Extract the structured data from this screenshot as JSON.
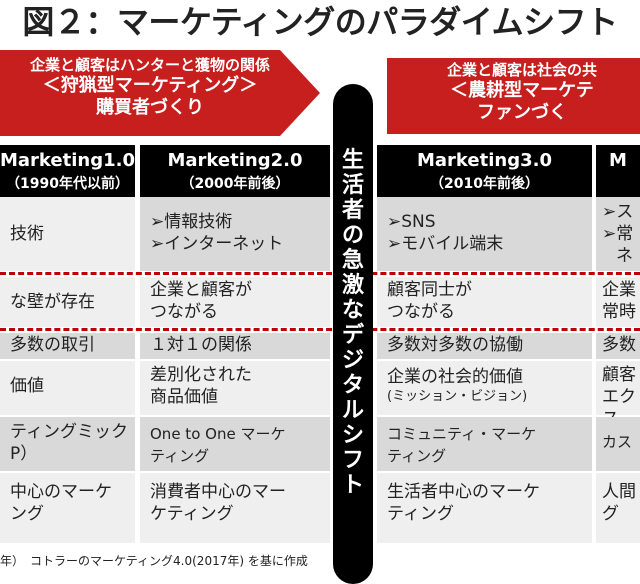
{
  "title": "図２：マーケティングのパラダイムシフト",
  "arrow_left": {
    "line1": "企業と顧客はハンターと獲物の関係",
    "line2": "＜狩猟型マーケティング＞",
    "line3": "購買者づくり"
  },
  "arrow_right": {
    "line1": "企業と顧客は社会の共",
    "line2": "＜農耕型マーケテ",
    "line3": "ファンづく"
  },
  "band_text": "生活者の急激なデジタルシフト",
  "headers": [
    {
      "h1": "Marketing1.0",
      "h2": "（1990年代以前）"
    },
    {
      "h1": "Marketing2.0",
      "h2": "（2000年前後）"
    },
    {
      "h1": "Marketing3.0",
      "h2": "（2010年前後）"
    },
    {
      "h1": "M",
      "h2": ""
    }
  ],
  "rows": [
    {
      "c1": "技術",
      "c2a": "➢情報技術",
      "c2b": "➢インターネット",
      "c3a": "➢SNS",
      "c3b": "➢モバイル端末",
      "c4a": "➢ス",
      "c4b": "➢常",
      "c4c": "ネ"
    },
    {
      "c1": "な壁が存在",
      "c2a": "企業と顧客が",
      "c2b": "つながる",
      "c3a": "顧客同士が",
      "c3b": "つながる",
      "c4a": "企業",
      "c4b": "常時"
    },
    {
      "c1": "多数の取引",
      "c2a": "１対１の関係",
      "c3a": "多数対多数の協働",
      "c4a": "多数"
    },
    {
      "c1": "価値",
      "c2a": "差別化された",
      "c2b": "商品価値",
      "c3a": "企業の社会的価値",
      "c3b": "(ミッション・ビジョン)",
      "c4a": "顧客",
      "c4b": "エクス"
    },
    {
      "c1a": "ティングミック",
      "c1b": "P）",
      "c2a": "One to One マーケ",
      "c2b": "ティング",
      "c3a": "コミュニティ・マーケ",
      "c3b": "ティング",
      "c4a": "カス"
    },
    {
      "c1a": "中心のマーケ",
      "c1b": "ング",
      "c2a": "消費者中心のマー",
      "c2b": "ケティング",
      "c3a": "生活者中心のマーケ",
      "c3b": "ティング",
      "c4a": "人間",
      "c4b": "グ"
    }
  ],
  "footnote": "年）　コトラーのマーケティング4.0(2017年) を基に作成"
}
